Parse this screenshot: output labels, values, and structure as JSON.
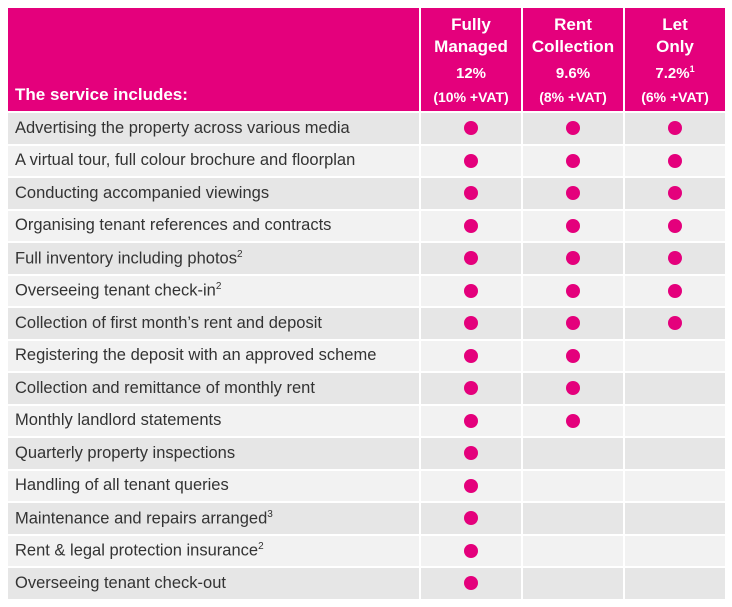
{
  "header": {
    "label": "The service includes:",
    "columns": [
      {
        "name_line1": "Fully",
        "name_line2": "Managed",
        "pct": "12%",
        "pct_sup": "",
        "vat": "(10% +VAT)"
      },
      {
        "name_line1": "Rent",
        "name_line2": "Collection",
        "pct": "9.6%",
        "pct_sup": "",
        "vat": "(8% +VAT)"
      },
      {
        "name_line1": "Let",
        "name_line2": "Only",
        "pct": "7.2%",
        "pct_sup": "1",
        "vat": "(6% +VAT)"
      }
    ]
  },
  "accent_color": "#e4007c",
  "rows": [
    {
      "label": "Advertising the property across various media",
      "sup": "",
      "included": [
        true,
        true,
        true
      ]
    },
    {
      "label": "A virtual tour, full colour brochure and floorplan",
      "sup": "",
      "included": [
        true,
        true,
        true
      ]
    },
    {
      "label": "Conducting accompanied viewings",
      "sup": "",
      "included": [
        true,
        true,
        true
      ]
    },
    {
      "label": "Organising tenant references and contracts",
      "sup": "",
      "included": [
        true,
        true,
        true
      ]
    },
    {
      "label": "Full inventory including photos",
      "sup": "2",
      "included": [
        true,
        true,
        true
      ]
    },
    {
      "label": "Overseeing tenant check-in",
      "sup": "2",
      "included": [
        true,
        true,
        true
      ]
    },
    {
      "label": "Collection of first month’s rent and deposit",
      "sup": "",
      "included": [
        true,
        true,
        true
      ]
    },
    {
      "label": "Registering the deposit with an approved scheme",
      "sup": "",
      "included": [
        true,
        true,
        false
      ]
    },
    {
      "label": "Collection and remittance of monthly rent",
      "sup": "",
      "included": [
        true,
        true,
        false
      ]
    },
    {
      "label": "Monthly landlord statements",
      "sup": "",
      "included": [
        true,
        true,
        false
      ]
    },
    {
      "label": "Quarterly property inspections",
      "sup": "",
      "included": [
        true,
        false,
        false
      ]
    },
    {
      "label": "Handling of all tenant queries",
      "sup": "",
      "included": [
        true,
        false,
        false
      ]
    },
    {
      "label": "Maintenance and repairs arranged",
      "sup": "3",
      "included": [
        true,
        false,
        false
      ]
    },
    {
      "label": "Rent & legal protection insurance",
      "sup": "2",
      "included": [
        true,
        false,
        false
      ]
    },
    {
      "label": "Overseeing tenant check-out",
      "sup": "",
      "included": [
        true,
        false,
        false
      ]
    }
  ]
}
